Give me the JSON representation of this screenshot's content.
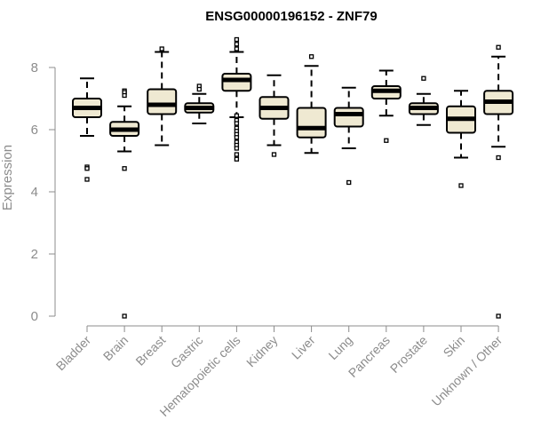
{
  "chart_data": {
    "type": "boxplot",
    "title": "ENSG00000196152 - ZNF79",
    "xlabel": "",
    "ylabel": "Expression",
    "ylim": [
      0,
      9
    ],
    "yticks": [
      "0",
      "2",
      "4",
      "6",
      "8"
    ],
    "grid": false,
    "box_fill": "#efe9d2",
    "box_stroke": "#000000",
    "axis_color": "#8c8c8c",
    "categories": [
      "Bladder",
      "Brain",
      "Breast",
      "Gastric",
      "Hematopoietic cells",
      "Kidney",
      "Liver",
      "Lung",
      "Pancreas",
      "Prostate",
      "Skin",
      "Unknown / Other"
    ],
    "boxes": [
      {
        "category": "Bladder",
        "whisker_low": 5.8,
        "q1": 6.4,
        "median": 6.7,
        "q3": 7.0,
        "whisker_high": 7.65,
        "outliers": [
          4.8,
          4.75,
          4.4
        ]
      },
      {
        "category": "Brain",
        "whisker_low": 5.3,
        "q1": 5.8,
        "median": 6.0,
        "q3": 6.25,
        "whisker_high": 6.75,
        "outliers": [
          7.25,
          7.2,
          7.1,
          4.75,
          0.0
        ]
      },
      {
        "category": "Breast",
        "whisker_low": 5.5,
        "q1": 6.5,
        "median": 6.8,
        "q3": 7.3,
        "whisker_high": 8.5,
        "outliers": [
          8.6
        ]
      },
      {
        "category": "Gastric",
        "whisker_low": 6.2,
        "q1": 6.55,
        "median": 6.7,
        "q3": 6.85,
        "whisker_high": 7.15,
        "outliers": [
          7.4,
          7.3
        ]
      },
      {
        "category": "Hematopoietic cells",
        "whisker_low": 6.4,
        "q1": 7.25,
        "median": 7.6,
        "q3": 7.8,
        "whisker_high": 8.5,
        "outliers": [
          8.9,
          8.75,
          8.6,
          6.45,
          6.3,
          6.2,
          6.05,
          5.95,
          5.85,
          5.75,
          5.6,
          5.5,
          5.4,
          5.2,
          5.05
        ]
      },
      {
        "category": "Kidney",
        "whisker_low": 5.5,
        "q1": 6.35,
        "median": 6.7,
        "q3": 7.05,
        "whisker_high": 7.75,
        "outliers": [
          5.2
        ]
      },
      {
        "category": "Liver",
        "whisker_low": 5.25,
        "q1": 5.75,
        "median": 6.05,
        "q3": 6.7,
        "whisker_high": 8.05,
        "outliers": [
          8.35
        ]
      },
      {
        "category": "Lung",
        "whisker_low": 5.4,
        "q1": 6.1,
        "median": 6.5,
        "q3": 6.7,
        "whisker_high": 7.35,
        "outliers": [
          4.3
        ]
      },
      {
        "category": "Pancreas",
        "whisker_low": 6.45,
        "q1": 7.0,
        "median": 7.25,
        "q3": 7.4,
        "whisker_high": 7.9,
        "outliers": [
          5.65
        ]
      },
      {
        "category": "Prostate",
        "whisker_low": 6.15,
        "q1": 6.5,
        "median": 6.7,
        "q3": 6.85,
        "whisker_high": 7.15,
        "outliers": [
          7.65
        ]
      },
      {
        "category": "Skin",
        "whisker_low": 5.1,
        "q1": 5.9,
        "median": 6.35,
        "q3": 6.75,
        "whisker_high": 7.25,
        "outliers": [
          4.2
        ]
      },
      {
        "category": "Unknown / Other",
        "whisker_low": 5.45,
        "q1": 6.5,
        "median": 6.9,
        "q3": 7.25,
        "whisker_high": 8.35,
        "outliers": [
          8.65,
          5.1,
          0.0
        ]
      }
    ]
  }
}
